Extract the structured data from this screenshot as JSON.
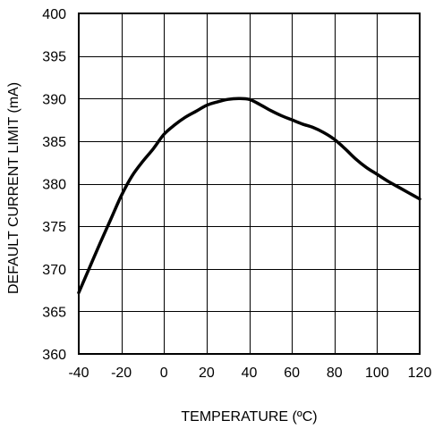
{
  "chart_data": {
    "type": "line",
    "title": "",
    "xlabel": "TEMPERATURE (ºC)",
    "ylabel": "DEFAULT CURRENT LIMIT (mA)",
    "xlim": [
      -40,
      120
    ],
    "ylim": [
      360,
      400
    ],
    "xticks": [
      "-40",
      "-20",
      "0",
      "20",
      "40",
      "60",
      "80",
      "100",
      "120"
    ],
    "yticks": [
      "360",
      "365",
      "370",
      "375",
      "380",
      "385",
      "390",
      "395",
      "400"
    ],
    "grid": true,
    "legend": "none",
    "series": [
      {
        "color": "#000000",
        "x": [
          -40,
          -35,
          -30,
          -25,
          -20,
          -15,
          -10,
          -5,
          0,
          5,
          10,
          15,
          20,
          25,
          30,
          35,
          40,
          45,
          50,
          55,
          60,
          65,
          70,
          75,
          80,
          85,
          90,
          95,
          100,
          105,
          110,
          115,
          120
        ],
        "y": [
          367.2,
          370.1,
          373.0,
          375.8,
          378.6,
          380.9,
          382.6,
          384.1,
          385.8,
          386.9,
          387.8,
          388.5,
          389.2,
          389.6,
          389.9,
          390.0,
          389.9,
          389.3,
          388.6,
          388.0,
          387.5,
          387.0,
          386.6,
          386.0,
          385.2,
          384.1,
          382.9,
          381.9,
          381.1,
          380.3,
          379.6,
          378.9,
          378.2
        ]
      }
    ]
  }
}
